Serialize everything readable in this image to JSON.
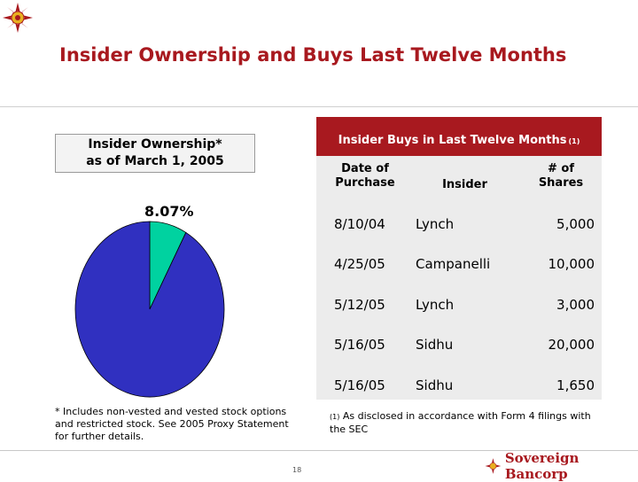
{
  "header": {
    "title": "Insider Ownership and Buys Last Twelve Months"
  },
  "ownership": {
    "box_line1": "Insider Ownership*",
    "box_line2": "as of March 1, 2005",
    "pie_label": "8.07%"
  },
  "buys_table": {
    "title": "Insider Buys in Last Twelve Months",
    "title_footnote": "(1)",
    "col_date_line1": "Date of",
    "col_date_line2": "Purchase",
    "col_insider": "Insider",
    "col_shares_line1": "# of",
    "col_shares_line2": "Shares",
    "rows": [
      {
        "date": "8/10/04",
        "insider": "Lynch",
        "shares": "5,000"
      },
      {
        "date": "4/25/05",
        "insider": "Campanelli",
        "shares": "10,000"
      },
      {
        "date": "5/12/05",
        "insider": "Lynch",
        "shares": "3,000"
      },
      {
        "date": "5/16/05",
        "insider": "Sidhu",
        "shares": "20,000"
      },
      {
        "date": "5/16/05",
        "insider": "Sidhu",
        "shares": "1,650"
      }
    ]
  },
  "footnotes": {
    "left": "* Includes non-vested and vested stock options and restricted stock.  See 2005 Proxy Statement for further details.",
    "right_marker": "(1)",
    "right": " As disclosed in accordance with Form 4 filings with the SEC"
  },
  "footer": {
    "page_number": "18",
    "brand": "Sovereign Bancorp"
  },
  "colors": {
    "accent": "#a8191f",
    "pie_insider": "#00d2a0",
    "pie_other": "#3030c0"
  },
  "chart_data": {
    "type": "pie",
    "title": "Insider Ownership* as of March 1, 2005",
    "slices": [
      {
        "value": 8.07,
        "color": "#00d2a0",
        "label": "8.07%"
      },
      {
        "value": 91.93,
        "color": "#3030c0",
        "label": ""
      }
    ]
  }
}
